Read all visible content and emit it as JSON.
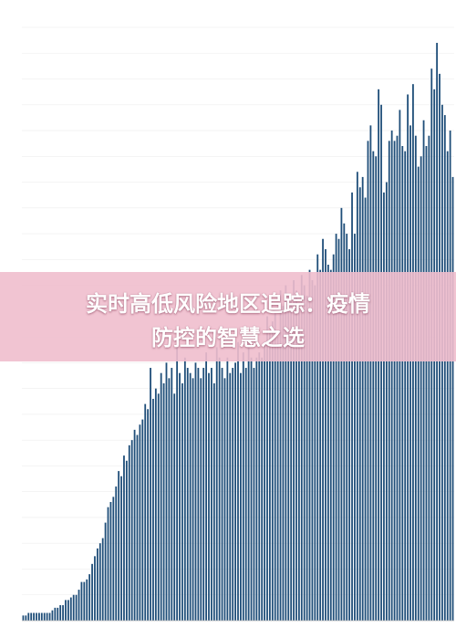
{
  "banner": {
    "line1": "实时高低风险地区追踪：疫情",
    "line2": "防控的智慧之选"
  },
  "colors": {
    "bar": "#1f4e79",
    "grid": "#ededed",
    "tick_text": "#8a8a8a",
    "banner_bg": "#f0bece",
    "banner_text": "#ffffff"
  },
  "chart_data": {
    "type": "bar",
    "title": "",
    "xlabel": "",
    "ylabel": "",
    "ylim": [
      0,
      23
    ],
    "grid": true,
    "legend": "none",
    "values": [
      0.2,
      0.2,
      0.3,
      0.3,
      0.3,
      0.3,
      0.3,
      0.3,
      0.3,
      0.3,
      0.3,
      0.4,
      0.5,
      0.5,
      0.6,
      0.6,
      0.8,
      0.8,
      0.9,
      1.0,
      1.0,
      1.2,
      1.5,
      1.5,
      1.6,
      1.8,
      2.2,
      2.5,
      2.8,
      3.0,
      3.2,
      3.8,
      4.4,
      4.6,
      4.8,
      5.2,
      5.8,
      5.6,
      6.4,
      6.2,
      6.8,
      7.0,
      7.4,
      7.2,
      7.6,
      7.8,
      8.4,
      8.2,
      9.8,
      8.6,
      9.0,
      8.8,
      9.6,
      9.2,
      10.0,
      9.4,
      9.8,
      8.8,
      10.6,
      9.6,
      9.2,
      10.2,
      9.8,
      9.6,
      9.4,
      10.0,
      9.8,
      9.4,
      9.8,
      10.4,
      9.6,
      9.8,
      9.2,
      10.6,
      10.2,
      9.8,
      9.4,
      10.2,
      9.6,
      9.8,
      10.0,
      10.8,
      9.6,
      10.4,
      9.8,
      10.8,
      10.2,
      9.8,
      10.2,
      10.4,
      10.2,
      10.8,
      11.8,
      11.2,
      11.6,
      12.0,
      11.0,
      12.8,
      12.2,
      13.0,
      12.6,
      12.4,
      13.2,
      12.8,
      12.2,
      13.4,
      13.0,
      12.6,
      13.6,
      13.2,
      13.0,
      14.2,
      13.6,
      14.8,
      14.4,
      13.8,
      13.6,
      14.2,
      15.0,
      14.8,
      16.0,
      15.4,
      15.0,
      14.4,
      16.6,
      15.0,
      17.4,
      16.8,
      17.2,
      16.4,
      18.6,
      19.2,
      18.2,
      18.0,
      20.6,
      20.0,
      16.6,
      17.0,
      18.6,
      19.0,
      18.6,
      18.8,
      19.8,
      18.4,
      18.2,
      20.4,
      19.2,
      20.8,
      18.8,
      17.6,
      18.0,
      19.4,
      18.4,
      18.8,
      21.4,
      20.6,
      22.4,
      21.2,
      20.0,
      19.6,
      18.2,
      19.0,
      17.2
    ]
  }
}
